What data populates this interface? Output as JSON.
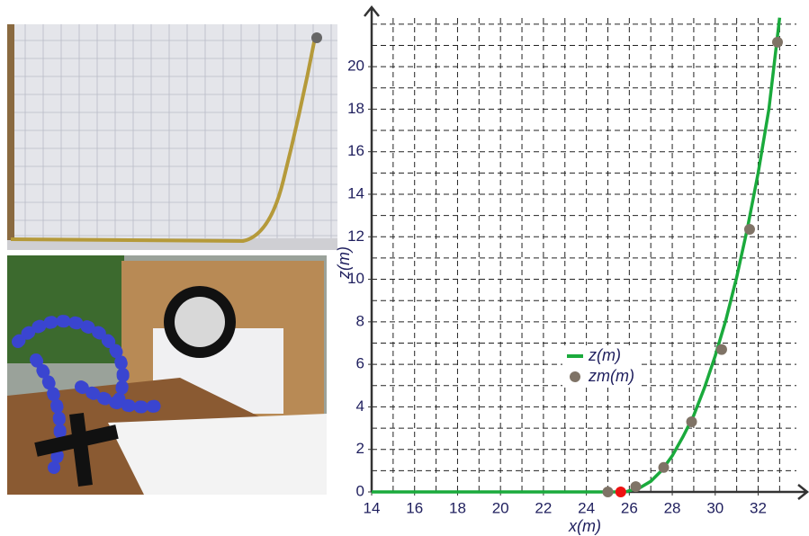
{
  "chart_data": {
    "type": "line",
    "xlabel": "x(m)",
    "ylabel": "z(m)",
    "xlim": [
      14,
      34.2
    ],
    "ylim": [
      0,
      22.5
    ],
    "xticks": [
      14,
      16,
      18,
      20,
      22,
      24,
      26,
      28,
      30,
      32
    ],
    "yticks": [
      0,
      2,
      4,
      6,
      8,
      10,
      12,
      14,
      16,
      18,
      20
    ],
    "xgrid": [
      15,
      16,
      17,
      18,
      19,
      20,
      21,
      22,
      23,
      24,
      25,
      26,
      27,
      28,
      29,
      30,
      31,
      32,
      33
    ],
    "ygrid": [
      1,
      2,
      3,
      4,
      5,
      6,
      7,
      8,
      9,
      10,
      11,
      12,
      13,
      14,
      15,
      16,
      17,
      18,
      19,
      20,
      21,
      22
    ],
    "series": [
      {
        "name": "z(m)",
        "kind": "line",
        "color": "#1aaa3c",
        "x": [
          14,
          25.8,
          26.5,
          27,
          27.5,
          28,
          28.5,
          29,
          29.5,
          30,
          30.5,
          31,
          31.5,
          32,
          32.5,
          33
        ],
        "values": [
          0,
          0,
          0.2,
          0.5,
          1.0,
          1.7,
          2.6,
          3.6,
          4.9,
          6.4,
          8.1,
          10.1,
          12.4,
          15.0,
          18.0,
          22.3
        ]
      },
      {
        "name": "zm(m)",
        "kind": "scatter",
        "color": "#7f7366",
        "x": [
          25.0,
          26.3,
          27.6,
          28.9,
          30.3,
          31.6,
          32.9
        ],
        "values": [
          0,
          0.25,
          1.15,
          3.3,
          6.7,
          12.35,
          21.15
        ]
      },
      {
        "kind": "scatter",
        "color": "#ee1111",
        "x": [
          25.6
        ],
        "values": [
          0
        ]
      }
    ]
  }
}
